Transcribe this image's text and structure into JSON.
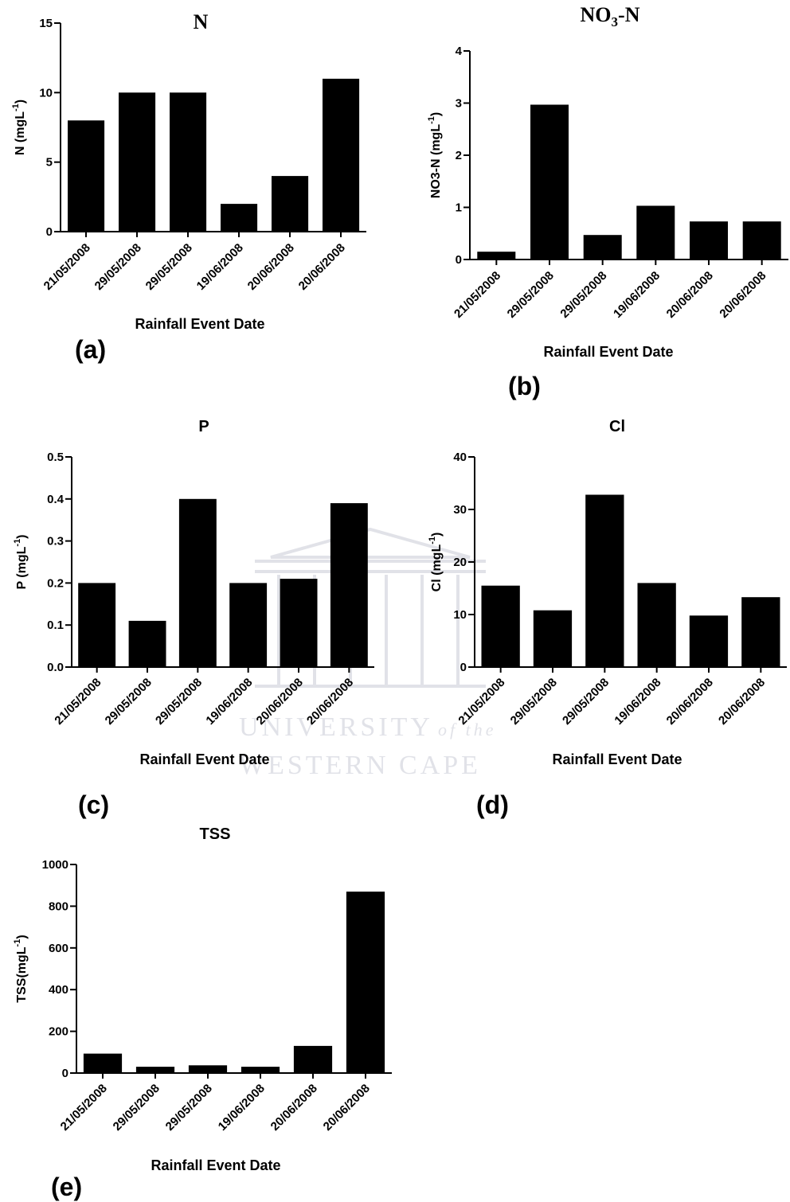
{
  "colors": {
    "bar": "#000000",
    "axis": "#000000",
    "watermark": "#c9ccd6"
  },
  "watermark": {
    "line1": "UNIVERSITY",
    "line1_suffix": "of the",
    "line2": "WESTERN CAPE"
  },
  "chart_data": [
    {
      "type": "bar",
      "panel_label": "(a)",
      "title": "N",
      "xlabel": "Rainfall Event Date",
      "ylabel": "N (mgL",
      "ylabel_sup": "-1",
      "ylabel_tail": ")",
      "categories": [
        "21/05/2008",
        "29/05/2008",
        "29/05/2008",
        "19/06/2008",
        "20/06/2008",
        "20/06/2008"
      ],
      "values": [
        8,
        10,
        10,
        2,
        4,
        11
      ],
      "ylim": [
        0,
        15
      ],
      "yticks": [
        "0",
        "5",
        "10",
        "15"
      ],
      "grid": false
    },
    {
      "type": "bar",
      "panel_label": "(b)",
      "title": "NO",
      "title_sub": "3",
      "title_tail": "-N",
      "xlabel": "Rainfall Event Date",
      "ylabel": "NO3-N (mgL",
      "ylabel_sup": "-1",
      "ylabel_tail": ")",
      "categories": [
        "21/05/2008",
        "29/05/2008",
        "29/05/2008",
        "19/06/2008",
        "20/06/2008",
        "20/06/2008"
      ],
      "values": [
        0.15,
        2.97,
        0.47,
        1.03,
        0.73,
        0.73
      ],
      "ylim": [
        0,
        4
      ],
      "yticks": [
        "0",
        "1",
        "2",
        "3",
        "4"
      ],
      "grid": false
    },
    {
      "type": "bar",
      "panel_label": "(c)",
      "title": "P",
      "xlabel": "Rainfall Event Date",
      "ylabel": "P (mgL",
      "ylabel_sup": "-1",
      "ylabel_tail": ")",
      "categories": [
        "21/05/2008",
        "29/05/2008",
        "29/05/2008",
        "19/06/2008",
        "20/06/2008",
        "20/06/2008"
      ],
      "values": [
        0.2,
        0.11,
        0.4,
        0.2,
        0.21,
        0.39
      ],
      "ylim": [
        0,
        0.5
      ],
      "yticks": [
        "0.0",
        "0.1",
        "0.2",
        "0.3",
        "0.4",
        "0.5"
      ],
      "grid": false
    },
    {
      "type": "bar",
      "panel_label": "(d)",
      "title": "Cl",
      "xlabel": "Rainfall Event Date",
      "ylabel": "Cl (mgL",
      "ylabel_sup": "-1",
      "ylabel_tail": ")",
      "categories": [
        "21/05/2008",
        "29/05/2008",
        "29/05/2008",
        "19/06/2008",
        "20/06/2008",
        "20/06/2008"
      ],
      "values": [
        15.5,
        10.8,
        32.8,
        16,
        9.8,
        13.3
      ],
      "ylim": [
        0,
        40
      ],
      "yticks": [
        "0",
        "10",
        "20",
        "30",
        "40"
      ],
      "grid": false
    },
    {
      "type": "bar",
      "panel_label": "(e)",
      "title": "TSS",
      "xlabel": "Rainfall Event Date",
      "ylabel": "TSS(mgL",
      "ylabel_sup": "-1",
      "ylabel_tail": ")",
      "categories": [
        "21/05/2008",
        "29/05/2008",
        "29/05/2008",
        "19/06/2008",
        "20/06/2008",
        "20/06/2008"
      ],
      "values": [
        93,
        30,
        37,
        30,
        130,
        870
      ],
      "ylim": [
        0,
        1000
      ],
      "yticks": [
        "0",
        "200",
        "400",
        "600",
        "800",
        "1000"
      ],
      "grid": false
    }
  ]
}
